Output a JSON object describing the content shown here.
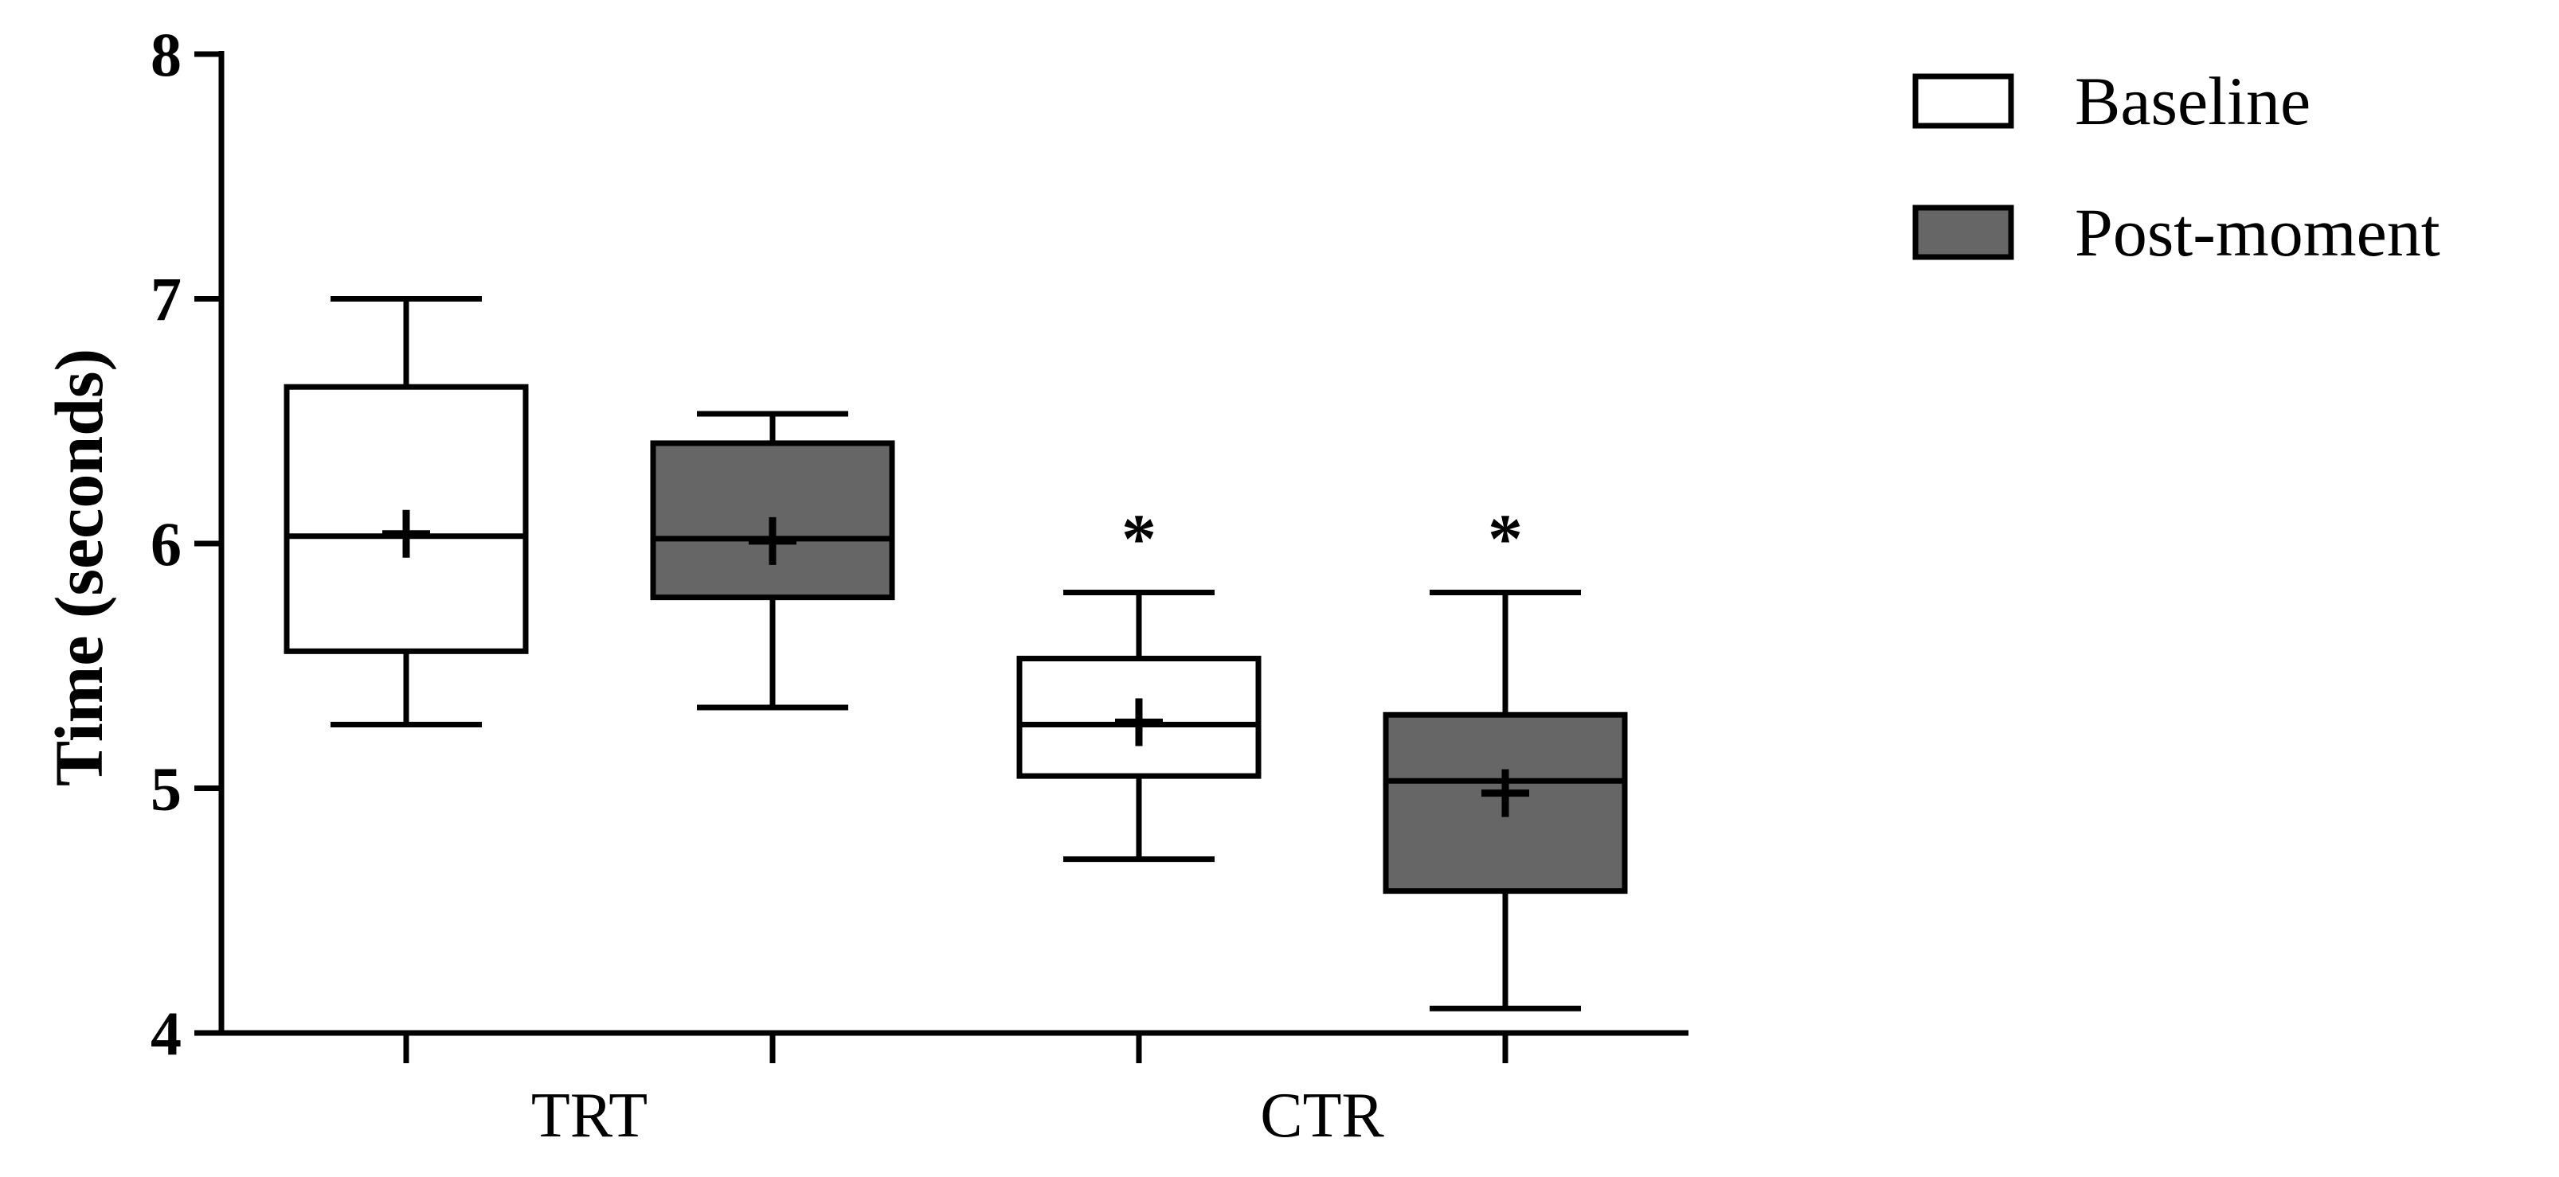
{
  "chart_data": {
    "type": "box",
    "ylabel": "Time (seconds)",
    "xlabel": "",
    "ylim": [
      4,
      8
    ],
    "yticks": [
      4,
      5,
      6,
      7,
      8
    ],
    "categories": [
      "TRT",
      "CTR"
    ],
    "legend_position": "top-right",
    "series": [
      {
        "name": "Baseline",
        "color": "#ffffff",
        "boxes": [
          {
            "category": "TRT",
            "min": 5.26,
            "q1": 5.56,
            "median": 6.03,
            "q3": 6.64,
            "max": 7.0,
            "mean": 6.04,
            "annotation": ""
          },
          {
            "category": "CTR",
            "min": 4.71,
            "q1": 5.05,
            "median": 5.26,
            "q3": 5.53,
            "max": 5.8,
            "mean": 5.27,
            "annotation": "*"
          }
        ]
      },
      {
        "name": "Post-moment",
        "color": "#666666",
        "boxes": [
          {
            "category": "TRT",
            "min": 5.33,
            "q1": 5.78,
            "median": 6.02,
            "q3": 6.41,
            "max": 6.53,
            "mean": 6.01,
            "annotation": ""
          },
          {
            "category": "CTR",
            "min": 4.1,
            "q1": 4.58,
            "median": 5.03,
            "q3": 5.3,
            "max": 5.8,
            "mean": 4.98,
            "annotation": "*"
          }
        ]
      }
    ]
  }
}
